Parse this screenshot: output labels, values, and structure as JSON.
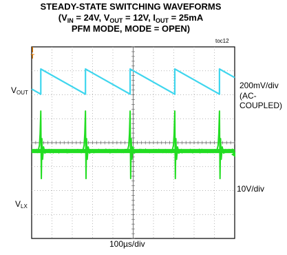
{
  "chart_data": {
    "type": "line",
    "title_line1": "STEADY-STATE SWITCHING WAVEFORMS",
    "title_line2": {
      "open": "(V",
      "vin_sub": "IN",
      "vin_val": " = 24V, V",
      "vout_sub": "OUT",
      "vout_val": " = 12V, I",
      "iout_sub": "OUT",
      "iout_val": " = 25mA"
    },
    "title_line3": "PFM MODE, MODE = OPEN)",
    "figure_id": "toc12",
    "x_scale": "100µs/div",
    "divisions": {
      "x": 10,
      "y": 8
    },
    "grid": true,
    "trigger_marker": "T",
    "series": [
      {
        "name_main": "V",
        "name_sub": "OUT",
        "scale": "200mV/div",
        "coupling_line1": "(AC-",
        "coupling_line2": "COUPLED)",
        "color": "#3fd6ee",
        "shape": "sawtooth",
        "period_div": 2.2,
        "first_jump_div": 0.45,
        "peak_to_peak_div": 1.05,
        "center_div_from_top": 1.45
      },
      {
        "name_main": "V",
        "name_sub": "LX",
        "scale": "10V/div",
        "color": "#22dd22",
        "shape": "spikes",
        "period_div": 2.2,
        "first_spike_div": 0.45,
        "baseline_div_from_top": 4.35
      }
    ]
  }
}
